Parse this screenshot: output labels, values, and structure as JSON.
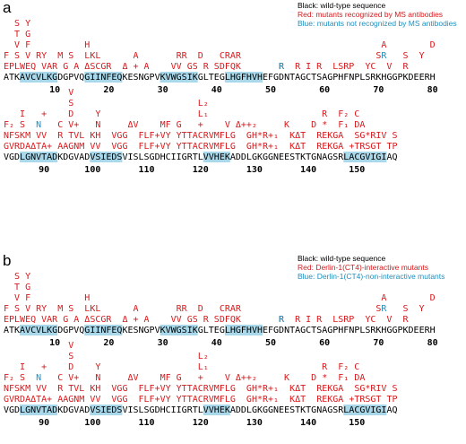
{
  "colors": {
    "black": "#000000",
    "red": "#d7191c",
    "blue": "#1f8fbf",
    "highlight": "#a9d8ea"
  },
  "panels": [
    {
      "label": "a",
      "legend": [
        {
          "text": "Black: wild-type sequence",
          "color": "black"
        },
        {
          "text": "Red: mutants recognized by MS antibodies",
          "color": "red"
        },
        {
          "text": "Blue: mutants not recognized by MS antibodies",
          "color": "blue"
        }
      ],
      "rows": [
        {
          "sequence": "ATKAVCVLKGDGPVQGIINFEQKESNGPVKVWGSIKGLTEGLHGFHVHEFGDNTAGCTSAGPHFNPLSRKHGGPKDEERH",
          "highlights": [
            [
              3,
              9
            ],
            [
              15,
              21
            ],
            [
              29,
              35
            ],
            [
              41,
              47
            ]
          ],
          "ticks": [
            {
              "label": "10",
              "col": 9
            },
            {
              "label": "20",
              "col": 19
            },
            {
              "label": "30",
              "col": 29
            },
            {
              "label": "40",
              "col": 39
            },
            {
              "label": "50",
              "col": 49
            },
            {
              "label": "60",
              "col": 59
            },
            {
              "label": "70",
              "col": 69
            },
            {
              "label": "80",
              "col": 79
            }
          ],
          "mutation_lines": [
            [
              {
                "col": 2,
                "text": "S Y"
              }
            ],
            [
              {
                "col": 2,
                "text": "T G"
              }
            ],
            [
              {
                "col": 2,
                "text": "V F"
              },
              {
                "col": 15,
                "text": "H"
              },
              {
                "col": 70,
                "text": "A"
              },
              {
                "col": 79,
                "text": "D"
              }
            ],
            [
              {
                "col": 0,
                "text": "F S V RY  M S  LKL      A       RR  D   CRAR"
              },
              {
                "col": 69,
                "text": "S"
              },
              {
                "col": 70,
                "text": "R",
                "color": "blue"
              },
              {
                "col": 74,
                "text": "S"
              },
              {
                "col": 77,
                "text": "Y"
              }
            ],
            [
              {
                "col": 0,
                "text": "EPLWEQ VAR G A ΔSCGR  Δ + A    VV GS R SDFQK"
              },
              {
                "col": 51,
                "text": "R  R I R  LSRP  YC  V  R"
              },
              {
                "col": 51,
                "text": "R",
                "color": "blue"
              }
            ]
          ]
        },
        {
          "sequence": "VGDLGNVTADKDGVADVSIEDSVISLSGDHCIIGRTLVVHEKADDLGKGGNEESTKTGNAGSRLACGVIGIAQ",
          "highlights": [
            [
              3,
              9
            ],
            [
              16,
              21
            ],
            [
              37,
              41
            ],
            [
              63,
              70
            ]
          ],
          "ticks": [
            {
              "label": "90",
              "col": 7
            },
            {
              "label": "100",
              "col": 16
            },
            {
              "label": "110",
              "col": 26
            },
            {
              "label": "120",
              "col": 36
            },
            {
              "label": "130",
              "col": 46
            },
            {
              "label": "140",
              "col": 56
            },
            {
              "label": "150",
              "col": 65
            }
          ],
          "mutation_lines": [
            [
              {
                "col": 12,
                "text": "V"
              }
            ],
            [
              {
                "col": 12,
                "text": "S"
              },
              {
                "col": 36,
                "text": "L₂"
              }
            ],
            [
              {
                "col": 3,
                "text": "I"
              },
              {
                "col": 7,
                "text": "+"
              },
              {
                "col": 12,
                "text": "D"
              },
              {
                "col": 17,
                "text": "Y"
              },
              {
                "col": 36,
                "text": "L₁"
              },
              {
                "col": 59,
                "text": "R  F₂ C"
              }
            ],
            [
              {
                "col": 0,
                "text": "F₂ S"
              },
              {
                "col": 6,
                "text": "N",
                "color": "blue"
              },
              {
                "col": 10,
                "text": "C V+"
              },
              {
                "col": 17,
                "text": "N"
              },
              {
                "col": 23,
                "text": "ΔV    MF G   +    V Δ++₂     K    D *  F₁ DA"
              }
            ],
            [
              {
                "col": 0,
                "text": "NFSKM VV  R TVL KH  VGG  FLF+VY YTTACRVMFLG  GH*R+₁  KΔT  REKGA  SG*RIV S"
              }
            ],
            [
              {
                "col": 0,
                "text": "GVRDAΔTA+ AAGNM VV  VGG  FLF+VY YTTACRVMFLG  GH*R+₁  KΔT  REKGA +TRSGT TP"
              }
            ]
          ]
        }
      ]
    },
    {
      "label": "b",
      "legend": [
        {
          "text": "Black: wild-type sequence",
          "color": "black"
        },
        {
          "text": "Red: Derlin-1(CT4)-interactive mutants",
          "color": "red"
        },
        {
          "text": "Blue: Derlin-1(CT4)-non-interactive mutants",
          "color": "blue"
        }
      ]
    }
  ]
}
